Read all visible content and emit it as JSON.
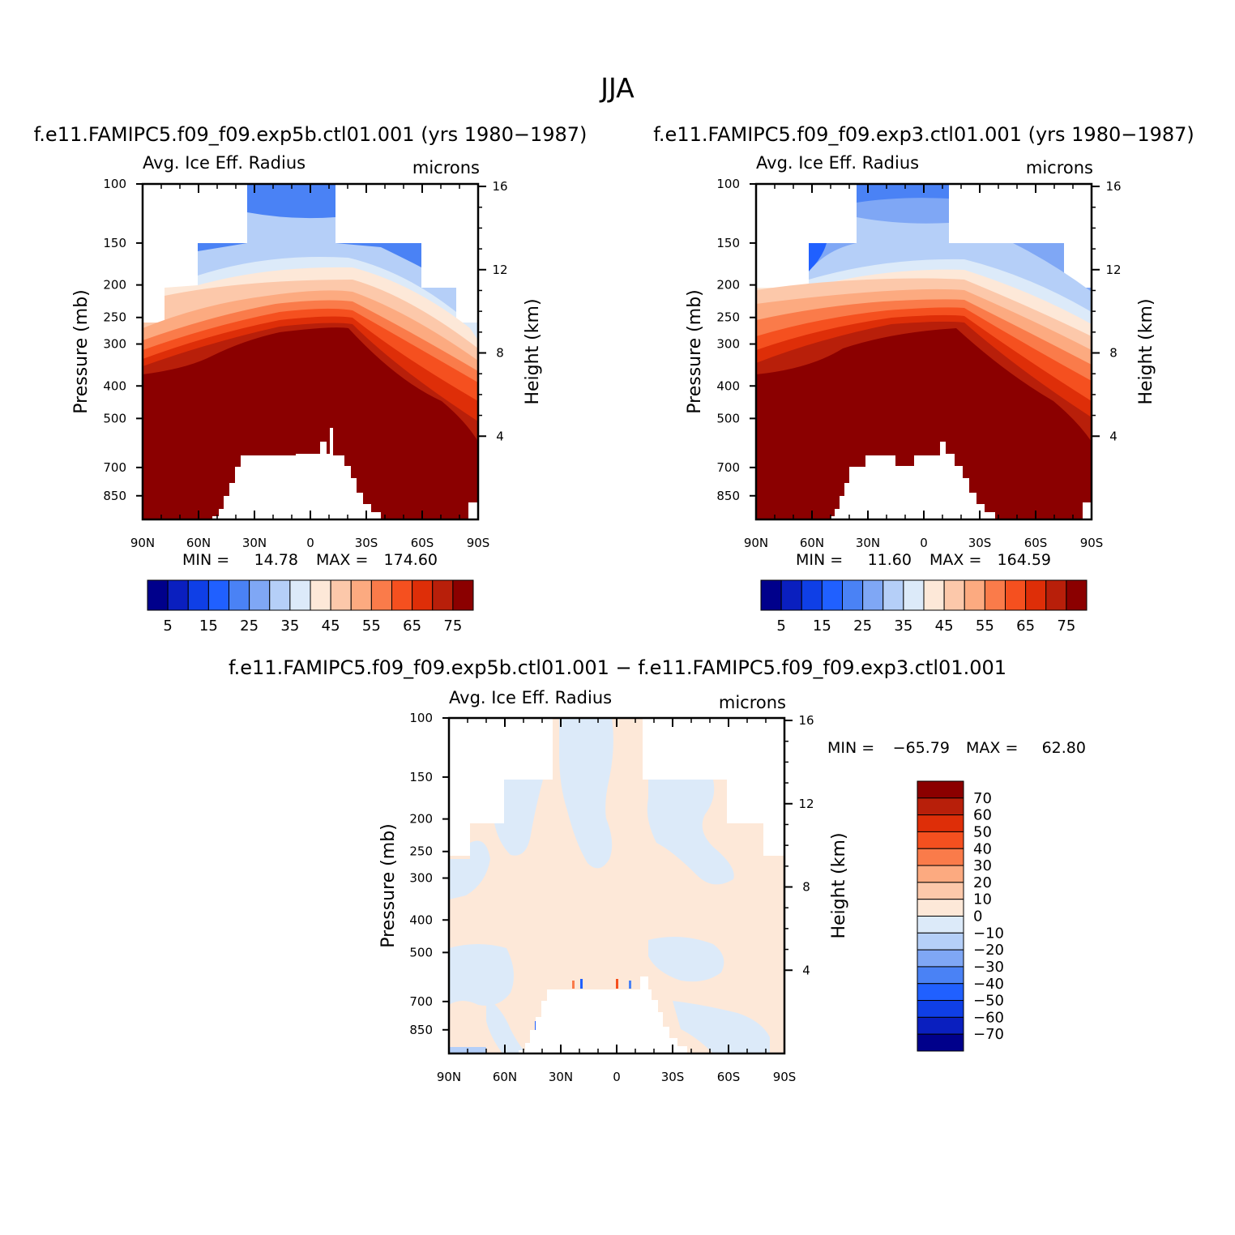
{
  "figure": {
    "title": "JJA",
    "colors": {
      "positive_scale": [
        "#00008b",
        "#0a1fbf",
        "#0f3fe6",
        "#2060ff",
        "#4a82f5",
        "#7fa7f5",
        "#b5cff8",
        "#dceaf9",
        "#fde8d8",
        "#fcc8aa",
        "#fcaa80",
        "#fa7b4a",
        "#f5501f",
        "#de2e08",
        "#b81f0a",
        "#8b0000"
      ],
      "difference_scale": [
        "#00008b",
        "#0a1fbf",
        "#0f3fe6",
        "#2060ff",
        "#4a82f5",
        "#7fa7f5",
        "#b5cff8",
        "#dceaf9",
        "#fde8d8",
        "#fcc8aa",
        "#fcaa80",
        "#fa7b4a",
        "#f5501f",
        "#de2e08",
        "#b81f0a",
        "#8b0000"
      ]
    }
  },
  "chart_data": [
    {
      "type": "heatmap",
      "title": "f.e11.FAMIPC5.f09_f09.exp5b.ctl01.001 (yrs 1980−1987)",
      "subtitle_left": "Avg. Ice Eff. Radius",
      "subtitle_right": "microns",
      "ylabel": "Pressure (mb)",
      "y2label": "Height (km)",
      "x_ticks": [
        "90N",
        "60N",
        "30N",
        "0",
        "30S",
        "60S",
        "90S"
      ],
      "y_ticks": [
        "100",
        "150",
        "200",
        "250",
        "300",
        "400",
        "500",
        "700",
        "850"
      ],
      "y2_ticks": [
        "16",
        "12",
        "8",
        "4"
      ],
      "min_label": "MIN =",
      "min_value": "14.78",
      "max_label": "MAX =",
      "max_value": "174.60",
      "colorbar_labels": [
        "5",
        "15",
        "25",
        "35",
        "45",
        "55",
        "65",
        "75"
      ],
      "contour_levels": [
        0,
        5,
        10,
        15,
        20,
        25,
        30,
        35,
        40,
        45,
        50,
        55,
        60,
        65,
        70,
        75
      ],
      "ylim": [
        1000,
        100
      ]
    },
    {
      "type": "heatmap",
      "title": "f.e11.FAMIPC5.f09_f09.exp3.ctl01.001 (yrs 1980−1987)",
      "subtitle_left": "Avg. Ice Eff. Radius",
      "subtitle_right": "microns",
      "ylabel": "Pressure (mb)",
      "y2label": "Height (km)",
      "x_ticks": [
        "90N",
        "60N",
        "30N",
        "0",
        "30S",
        "60S",
        "90S"
      ],
      "y_ticks": [
        "100",
        "150",
        "200",
        "250",
        "300",
        "400",
        "500",
        "700",
        "850"
      ],
      "y2_ticks": [
        "16",
        "12",
        "8",
        "4"
      ],
      "min_label": "MIN =",
      "min_value": "11.60",
      "max_label": "MAX =",
      "max_value": "164.59",
      "colorbar_labels": [
        "5",
        "15",
        "25",
        "35",
        "45",
        "55",
        "65",
        "75"
      ],
      "contour_levels": [
        0,
        5,
        10,
        15,
        20,
        25,
        30,
        35,
        40,
        45,
        50,
        55,
        60,
        65,
        70,
        75
      ],
      "ylim": [
        1000,
        100
      ]
    },
    {
      "type": "heatmap",
      "title": "f.e11.FAMIPC5.f09_f09.exp5b.ctl01.001 − f.e11.FAMIPC5.f09_f09.exp3.ctl01.001",
      "subtitle_left": "Avg. Ice Eff. Radius",
      "subtitle_right": "microns",
      "ylabel": "Pressure (mb)",
      "y2label": "Height (km)",
      "x_ticks": [
        "90N",
        "60N",
        "30N",
        "0",
        "30S",
        "60S",
        "90S"
      ],
      "y_ticks": [
        "100",
        "150",
        "200",
        "250",
        "300",
        "400",
        "500",
        "700",
        "850"
      ],
      "y2_ticks": [
        "16",
        "12",
        "8",
        "4"
      ],
      "min_label": "MIN =",
      "min_value": "−65.79",
      "max_label": "MAX =",
      "max_value": "62.80",
      "colorbar_labels": [
        "70",
        "60",
        "50",
        "40",
        "30",
        "20",
        "10",
        "0",
        "−10",
        "−20",
        "−30",
        "−40",
        "−50",
        "−60",
        "−70"
      ],
      "contour_levels": [
        -70,
        -60,
        -50,
        -40,
        -30,
        -20,
        -10,
        0,
        10,
        20,
        30,
        40,
        50,
        60,
        70
      ],
      "ylim": [
        1000,
        100
      ]
    }
  ]
}
